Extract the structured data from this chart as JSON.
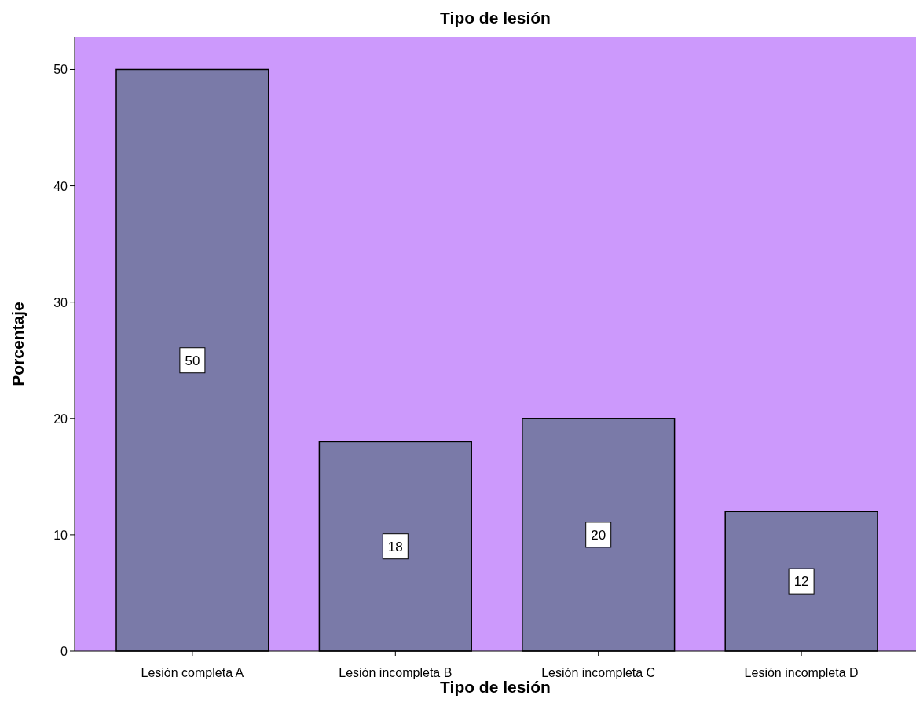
{
  "chart_data": {
    "type": "bar",
    "title": "Tipo de lesión",
    "xlabel": "Tipo de lesión",
    "ylabel": "Porcentaje",
    "categories": [
      "Lesión completa A",
      "Lesión incompleta B",
      "Lesión incompleta C",
      "Lesión incompleta D"
    ],
    "values": [
      50,
      18,
      20,
      12
    ],
    "color": "#7a7aa8",
    "ylim": [
      0,
      52.8
    ],
    "yticks": [
      0,
      10,
      20,
      30,
      40,
      50
    ],
    "data_labels": true,
    "grid": false
  }
}
